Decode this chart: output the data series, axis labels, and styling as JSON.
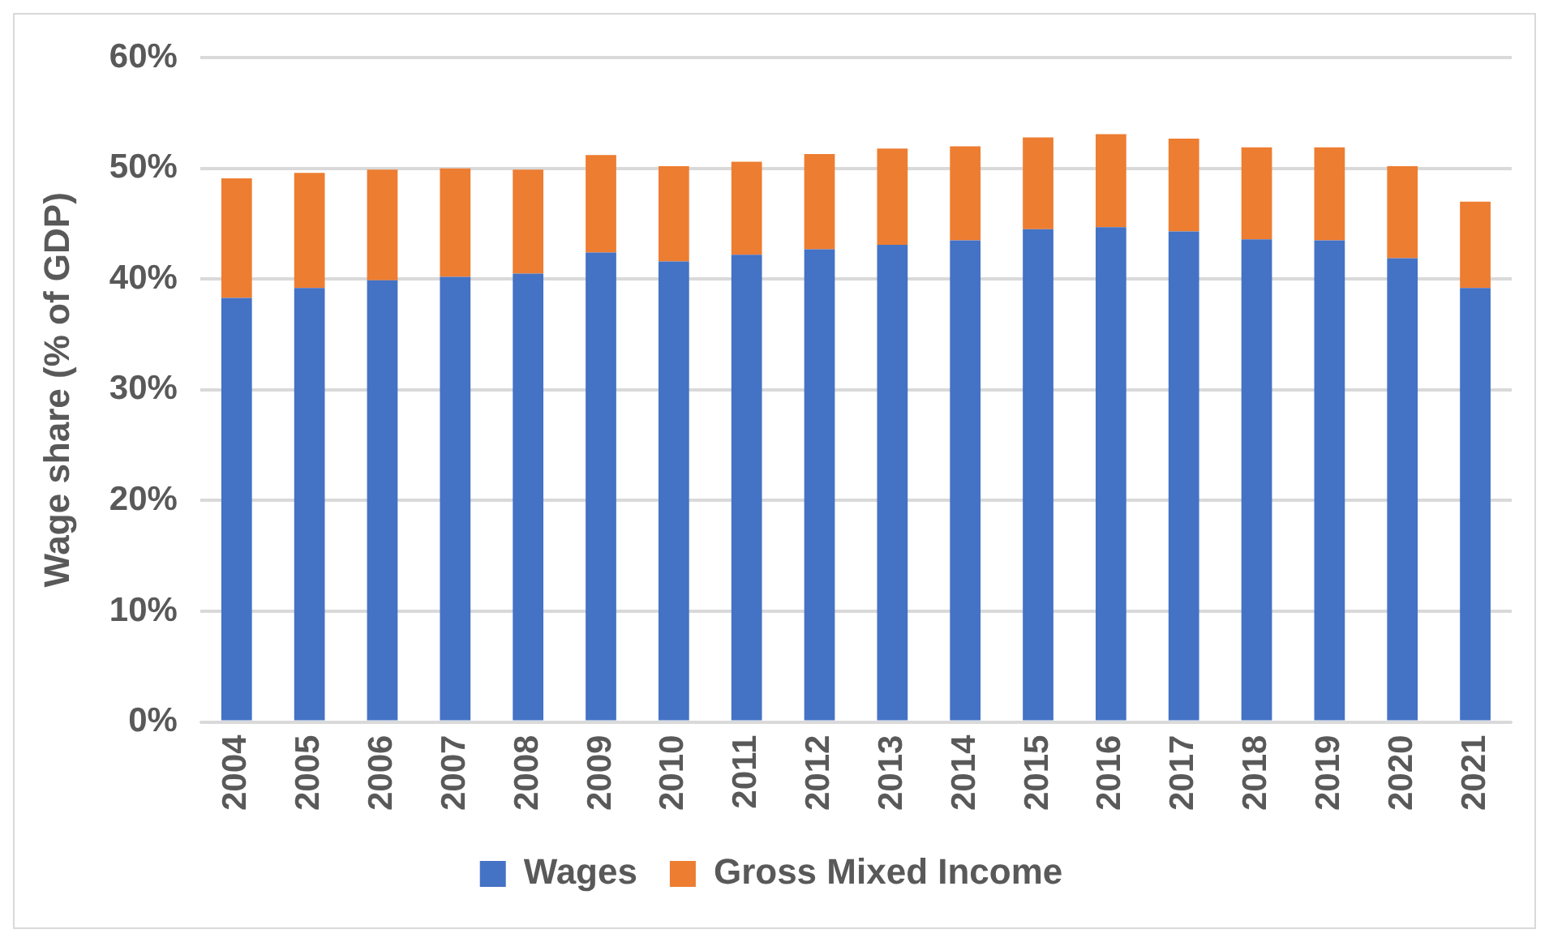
{
  "chart_data": {
    "type": "bar",
    "stacked": true,
    "ylabel": "Wage share (% of GDP)",
    "categories": [
      "2004",
      "2005",
      "2006",
      "2007",
      "2008",
      "2009",
      "2010",
      "2011",
      "2012",
      "2013",
      "2014",
      "2015",
      "2016",
      "2017",
      "2018",
      "2019",
      "2020",
      "2021"
    ],
    "series": [
      {
        "name": "Wages",
        "color": "#4472c4",
        "values": [
          38.3,
          39.2,
          39.9,
          40.2,
          40.5,
          42.4,
          41.6,
          42.2,
          42.7,
          43.1,
          43.5,
          44.5,
          44.7,
          44.3,
          43.6,
          43.5,
          41.9,
          39.2
        ]
      },
      {
        "name": "Gross Mixed Income",
        "color": "#ed7d31",
        "values": [
          10.8,
          10.4,
          10.0,
          9.8,
          9.4,
          8.8,
          8.6,
          8.4,
          8.6,
          8.7,
          8.5,
          8.3,
          8.4,
          8.4,
          8.3,
          8.4,
          8.3,
          7.8
        ]
      }
    ],
    "ylim": [
      0,
      60
    ],
    "yticks": [
      {
        "value": 0,
        "label": "0%"
      },
      {
        "value": 10,
        "label": "10%"
      },
      {
        "value": 20,
        "label": "20%"
      },
      {
        "value": 30,
        "label": "30%"
      },
      {
        "value": 40,
        "label": "40%"
      },
      {
        "value": 50,
        "label": "50%"
      },
      {
        "value": 60,
        "label": "60%"
      }
    ],
    "grid": "y",
    "legend": "bottom"
  }
}
